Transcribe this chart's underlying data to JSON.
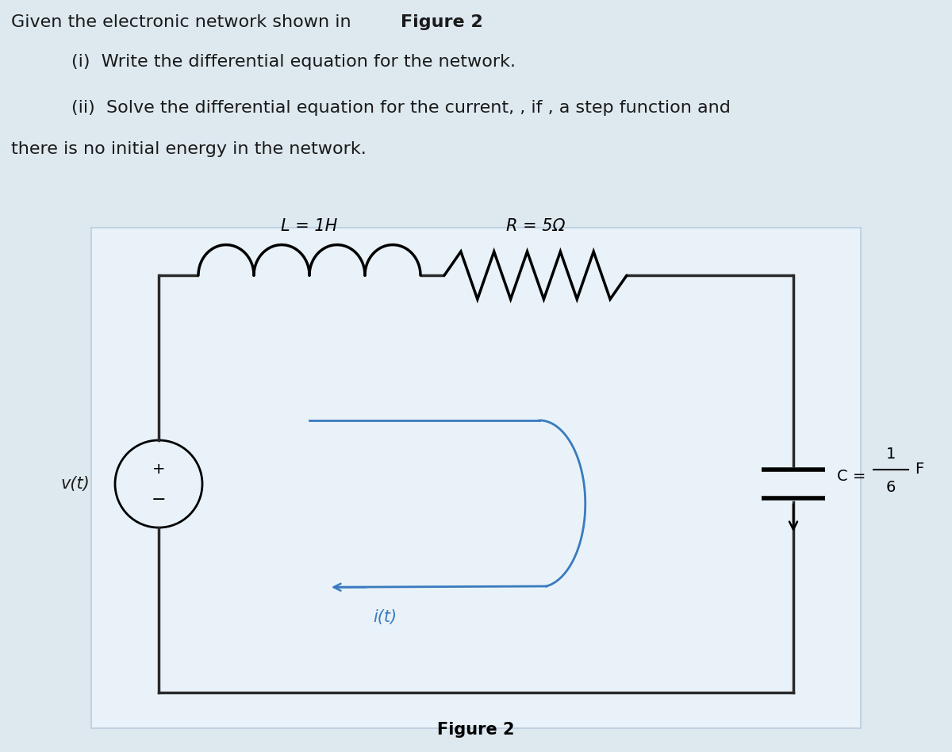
{
  "bg_color": "#dde8ef",
  "circuit_bg": "#e8f2f8",
  "text_color": "#1a1a1a",
  "blue_color": "#3a7abf",
  "dark_color": "#1a1a1a",
  "wire_color": "#2a2a2a",
  "L_label": "L = 1H",
  "R_label": "R = 5Ω",
  "vt_label": "v(t)",
  "it_label": "i(t)",
  "fig_caption": "Figure 2",
  "font_size_text": 16,
  "font_size_label": 15,
  "font_size_circuit": 14
}
